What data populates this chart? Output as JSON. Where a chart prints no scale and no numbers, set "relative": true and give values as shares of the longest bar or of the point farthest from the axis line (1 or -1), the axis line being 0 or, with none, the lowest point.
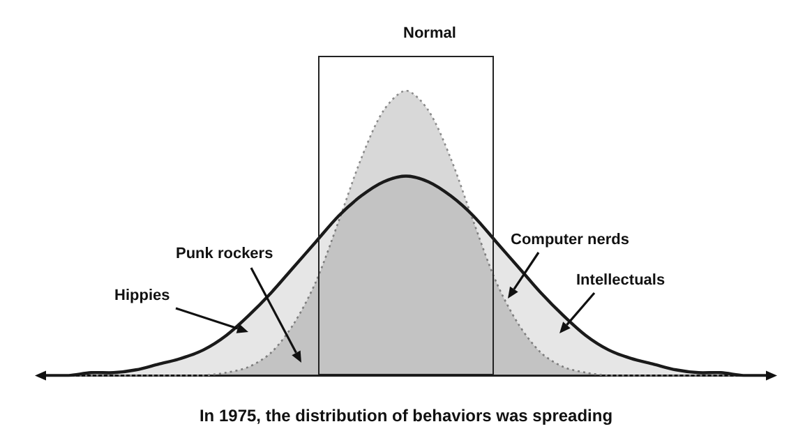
{
  "chart_data": {
    "type": "area",
    "title": "In 1975, the distribution of behaviors was spreading",
    "annotations": [
      "Normal",
      "Hippies",
      "Punk rockers",
      "Computer nerds",
      "Intellectuals"
    ],
    "categories": [
      null,
      null,
      null,
      null,
      null,
      null,
      null,
      null,
      null,
      null,
      null,
      null,
      null,
      null,
      null,
      null,
      null,
      null,
      null,
      null,
      null,
      null,
      null,
      null,
      null,
      null,
      null,
      null,
      null,
      null,
      null,
      null,
      null
    ],
    "relative": true,
    "legend": false,
    "grid": false,
    "marker": "none",
    "series": [
      {
        "color": "#1a1a1a",
        "line_style": "solid",
        "values": [
          0,
          0,
          0.01,
          0.01,
          0.02,
          0.04,
          0.06,
          0.09,
          0.14,
          0.21,
          0.29,
          0.38,
          0.47,
          0.56,
          0.63,
          0.68,
          0.7,
          0.68,
          0.63,
          0.56,
          0.47,
          0.38,
          0.29,
          0.21,
          0.14,
          0.09,
          0.06,
          0.04,
          0.02,
          0.01,
          0.01,
          0,
          0
        ]
      },
      {
        "color": "#8a8a8a",
        "line_style": "dotted",
        "values": [
          0,
          0,
          0,
          0,
          0,
          0,
          0,
          0,
          0.01,
          0.03,
          0.08,
          0.18,
          0.33,
          0.54,
          0.76,
          0.93,
          1,
          0.93,
          0.76,
          0.54,
          0.33,
          0.18,
          0.08,
          0.03,
          0.01,
          0,
          0,
          0,
          0,
          0,
          0,
          0,
          0
        ]
      }
    ]
  }
}
